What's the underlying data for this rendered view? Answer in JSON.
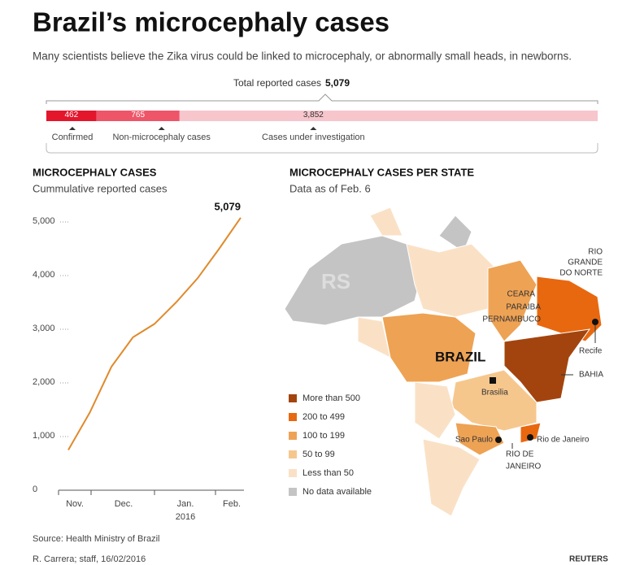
{
  "title": "Brazil’s microcephaly cases",
  "subtitle": "Many scientists believe  the Zika virus could be linked to microcephaly, or abnormally small heads, in newborns.",
  "chart_data": [
    {
      "type": "stacked_bar",
      "total_label": "Total reported cases",
      "total": 5079,
      "total_value_label": "5,079",
      "series": [
        {
          "name": "Confirmed",
          "color": "#e3162c",
          "values": [
            462
          ],
          "value_labels": [
            "462"
          ]
        },
        {
          "name": "Non-microcephaly cases",
          "color": "#ee5569",
          "values": [
            765
          ],
          "value_labels": [
            "765"
          ]
        },
        {
          "name": "Cases under investigation",
          "color": "#f7c5cc",
          "values": [
            3852
          ],
          "value_labels": [
            "3,852"
          ]
        }
      ]
    },
    {
      "type": "line",
      "title": "MICROCEPHALY CASES",
      "subtitle": "Cummulative reported cases",
      "values": [
        750,
        1450,
        2300,
        2850,
        3100,
        3500,
        3950,
        4500,
        5079
      ],
      "color": "#e08a2c",
      "annotation": "5,079",
      "x_axis_labels": [
        "Nov.",
        "Dec.",
        "Jan.",
        "Feb."
      ],
      "x_axis_year": "2016",
      "ylim": [
        0,
        5000
      ],
      "yticks": [
        0,
        {
          "value": 1000,
          "label": "1,000"
        },
        {
          "value": 2000,
          "label": "2,000"
        },
        {
          "value": 3000,
          "label": "3,000"
        },
        {
          "value": 4000,
          "label": "4,000"
        },
        {
          "value": 5000,
          "label": "5,000"
        }
      ],
      "grid": true
    }
  ],
  "map": {
    "title": "MICROCEPHALY CASES PER STATE",
    "subtitle": "Data as of Feb. 6",
    "legend": [
      {
        "label": "More than 500",
        "color": "#a3440e"
      },
      {
        "label": "200 to 499",
        "color": "#e8680f"
      },
      {
        "label": "100 to 199",
        "color": "#eea254"
      },
      {
        "label": "50 to 99",
        "color": "#f6c78d"
      },
      {
        "label": "Less than 50",
        "color": "#fae1c6"
      },
      {
        "label": "No data available",
        "color": "#c4c4c4"
      }
    ],
    "country": "BRAZIL",
    "watermark": "RS",
    "labels": [
      "RIO",
      "GRANDE",
      "DO NORTE",
      "CEARA",
      "PARAIBA",
      "PERNAMBUCO",
      "Recife",
      "BAHIA",
      "Brasilia",
      "Sao Paulo",
      "Rio de Janeiro",
      "RIO DE",
      "JANEIRO"
    ]
  },
  "footer": {
    "source": "Source: Health Ministry of Brazil",
    "credit": "R. Carrera; staff, 16/02/2016",
    "logo": "REUTERS"
  }
}
